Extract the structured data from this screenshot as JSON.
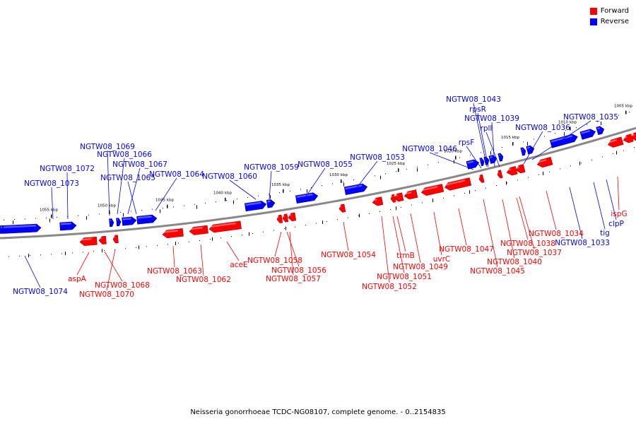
{
  "legend": {
    "forward_label": "Forward",
    "reverse_label": "Reverse",
    "forward_color": "#ff0000",
    "reverse_color": "#0000ff"
  },
  "caption": "Neisseria gonorrhoeae TCDC-NG08107, complete genome. - 0..2154835",
  "colors": {
    "backbone": "#888888",
    "leader": "#000000"
  },
  "scale_ticks": [
    "1055 kbp",
    "1050 kbp",
    "1045 kbp",
    "1040 kbp",
    "1035 kbp",
    "1030 kbp",
    "1025 kbp",
    "1020 kbp",
    "1015 kbp",
    "1010 kbp",
    "1005 kbp"
  ],
  "gene_labels": {
    "reverse": [
      "NGTW08_1074",
      "NGTW08_1073",
      "NGTW08_1072",
      "NGTW08_1069",
      "NGTW08_1066",
      "NGTW08_1067",
      "NGTW08_1065",
      "NGTW08_1064",
      "NGTW08_1060",
      "NGTW08_1059",
      "NGTW08_1055",
      "NGTW08_1053",
      "NGTW08_1046",
      "rpsF",
      "NGTW08_1043",
      "rpsR",
      "NGTW08_1039",
      "rplI",
      "NGTW08_1036",
      "NGTW08_1035",
      "NGTW08_1033",
      "tig",
      "clpP"
    ],
    "forward": [
      "aspA",
      "NGTW08_1068",
      "NGTW08_1070",
      "NGTW08_1063",
      "NGTW08_1062",
      "aceE",
      "NGTW08_1058",
      "NGTW08_1056",
      "NGTW08_1057",
      "NGTW08_1054",
      "NGTW08_1052",
      "NGTW08_1051",
      "trmB",
      "NGTW08_1049",
      "uvrC",
      "NGTW08_1047",
      "NGTW08_1045",
      "NGTW08_1040",
      "NGTW08_1037",
      "NGTW08_1038",
      "NGTW08_1034",
      "ispG"
    ]
  }
}
